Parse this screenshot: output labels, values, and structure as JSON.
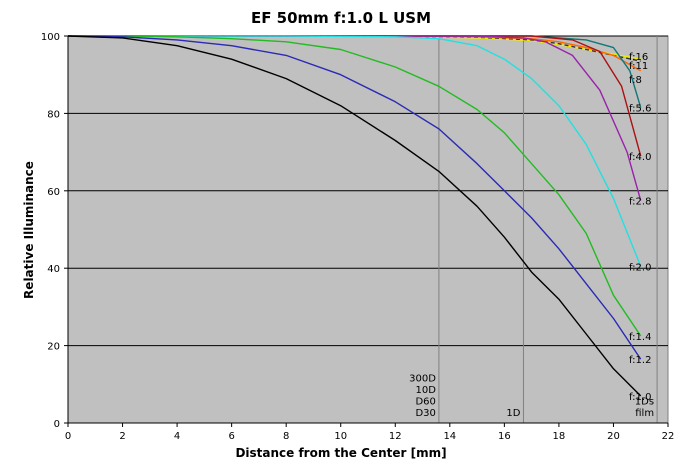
{
  "chart_data": {
    "type": "line",
    "title": "EF 50mm f:1.0 L USM",
    "xlabel": "Distance from the Center [mm]",
    "ylabel": "Relative Illuminance",
    "xlim": [
      0,
      22
    ],
    "ylim": [
      0,
      100
    ],
    "xticks": [
      "0",
      "2",
      "4",
      "6",
      "8",
      "10",
      "12",
      "14",
      "16",
      "18",
      "20",
      "22"
    ],
    "yticks": [
      "0",
      "20",
      "40",
      "60",
      "80",
      "100"
    ],
    "grid": {
      "horizontal": true,
      "vertical": false
    },
    "plot_background": "#c0c0c0",
    "reference_lines": [
      {
        "x": 13.6,
        "text": [
          "300D",
          "10D",
          "D60",
          "D30"
        ]
      },
      {
        "x": 16.7,
        "text": [
          "1D"
        ]
      },
      {
        "x": 21.6,
        "text": [
          "1Ds",
          "film"
        ]
      }
    ],
    "series": [
      {
        "name": "f:1.0",
        "color": "#000000",
        "x": [
          0,
          2,
          4,
          6,
          8,
          10,
          12,
          13.6,
          15,
          16,
          17,
          18,
          19,
          20,
          21
        ],
        "y": [
          100,
          99.5,
          97.5,
          94,
          89,
          82,
          73,
          65,
          56,
          48,
          39,
          32,
          23,
          14,
          7
        ]
      },
      {
        "name": "f:1.2",
        "color": "#2a2ab4",
        "x": [
          0,
          2,
          4,
          6,
          8,
          10,
          12,
          13.6,
          15,
          16,
          17,
          18,
          19,
          20,
          21
        ],
        "y": [
          100,
          99.8,
          99,
          97.5,
          95,
          90,
          83,
          76,
          67,
          60,
          53,
          45,
          36,
          27,
          16.5
        ]
      },
      {
        "name": "f:1.4",
        "color": "#22bb22",
        "x": [
          0,
          2,
          4,
          6,
          8,
          10,
          12,
          13.6,
          15,
          16,
          17,
          18,
          19,
          20,
          21
        ],
        "y": [
          100,
          100,
          99.8,
          99.3,
          98.5,
          96.5,
          92,
          87,
          81,
          75,
          67,
          59,
          49,
          33,
          22.5
        ]
      },
      {
        "name": "f:2.0",
        "color": "#22e0e0",
        "x": [
          0,
          4,
          8,
          12,
          13.6,
          15,
          16,
          17,
          18,
          19,
          20,
          21
        ],
        "y": [
          100,
          100,
          100,
          99.8,
          99.3,
          97.5,
          94,
          89,
          82,
          72,
          58,
          40.5
        ]
      },
      {
        "name": "f:2.8",
        "color": "#9922aa",
        "x": [
          0,
          4,
          8,
          12,
          15,
          16.7,
          17.5,
          18.5,
          19.5,
          20.5,
          21
        ],
        "y": [
          100,
          100,
          100,
          100,
          100,
          99.5,
          98.5,
          95,
          86,
          70,
          57.5
        ]
      },
      {
        "name": "f:4.0",
        "color": "#aa1111",
        "x": [
          0,
          4,
          8,
          12,
          15,
          17,
          18.5,
          19.5,
          20.3,
          21
        ],
        "y": [
          100,
          100,
          100,
          100,
          100,
          100,
          99,
          96,
          87,
          69
        ]
      },
      {
        "name": "f:5.6",
        "color": "#117777",
        "x": [
          0,
          4,
          8,
          12,
          15,
          17,
          19,
          20,
          20.6,
          21
        ],
        "y": [
          100,
          100,
          100,
          100,
          100,
          100,
          99,
          97,
          91,
          81.5
        ]
      },
      {
        "name": "f:8",
        "color": "#ff6600",
        "x": [
          0,
          4,
          8,
          12,
          15,
          17,
          18,
          19,
          20,
          21
        ],
        "y": [
          100,
          100,
          100,
          100,
          99.8,
          99.3,
          98.5,
          97,
          95,
          91
        ]
      },
      {
        "name": "f:11",
        "color": "#333333",
        "dashed": true,
        "x": [
          0,
          4,
          8,
          12,
          15,
          17,
          18,
          19,
          20,
          21
        ],
        "y": [
          100,
          100,
          100,
          100,
          99.7,
          99,
          98,
          96.5,
          95,
          93.5
        ]
      },
      {
        "name": "f:16",
        "color": "#eeee00",
        "x": [
          0,
          4,
          8,
          12,
          15,
          17,
          18,
          19,
          20,
          21
        ],
        "y": [
          100,
          100,
          100,
          99.9,
          99.5,
          98.8,
          97.8,
          96.5,
          95.3,
          94
        ]
      }
    ]
  }
}
